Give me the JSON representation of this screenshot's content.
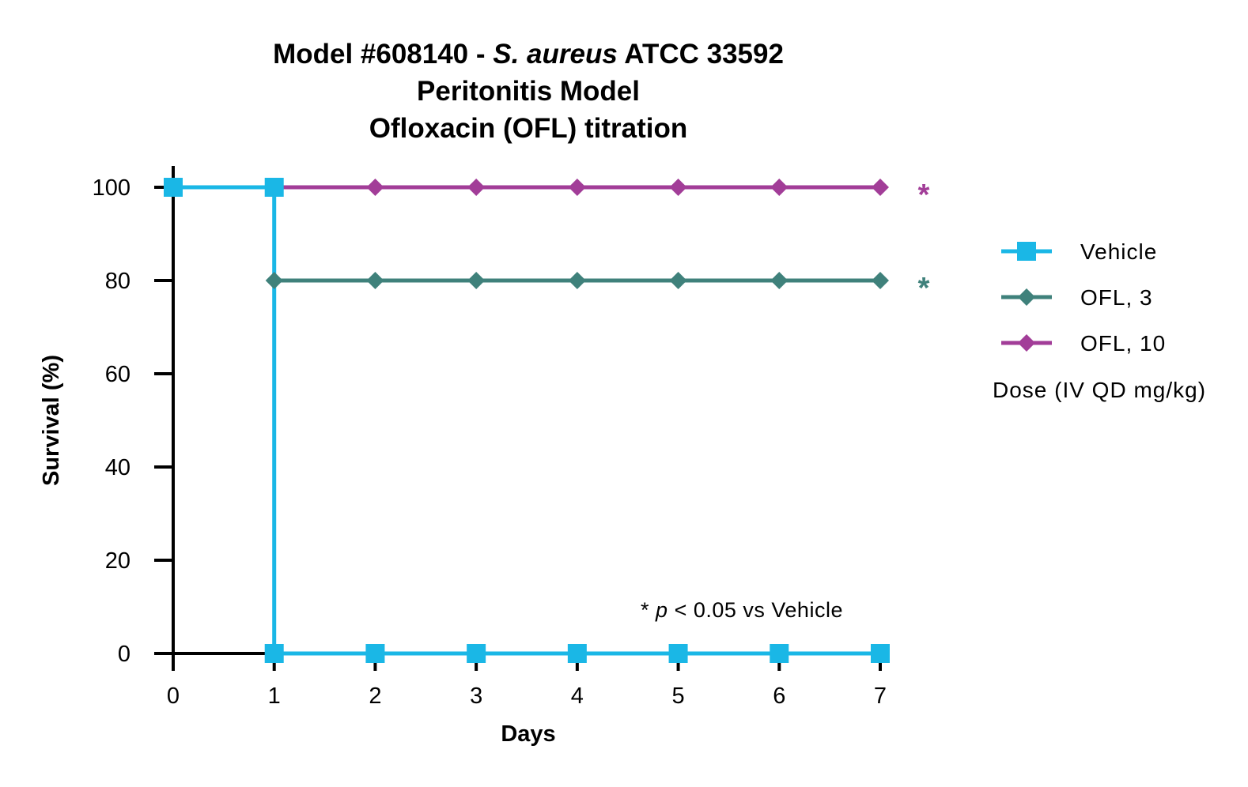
{
  "chart_data": {
    "type": "line",
    "title": {
      "line1_prefix": "Model #608140 - ",
      "line1_italic": "S. aureus",
      "line1_suffix": " ATCC 33592",
      "line2": "Peritonitis Model",
      "line3": "Ofloxacin (OFL) titration"
    },
    "xlabel": "Days",
    "ylabel": "Survival (%)",
    "xlim": [
      0,
      7
    ],
    "ylim": [
      0,
      100
    ],
    "xticks": [
      "0",
      "1",
      "2",
      "3",
      "4",
      "5",
      "6",
      "7"
    ],
    "yticks": [
      "0",
      "20",
      "40",
      "60",
      "80",
      "100"
    ],
    "step": true,
    "grid": false,
    "legend_position": "right",
    "legend_title": "Dose (IV QD mg/kg)",
    "series": [
      {
        "name": "Vehicle",
        "color": "#1ab7e6",
        "marker": "square",
        "x": [
          0,
          1,
          1,
          2,
          3,
          4,
          5,
          6,
          7
        ],
        "y": [
          100,
          100,
          0,
          0,
          0,
          0,
          0,
          0,
          0
        ],
        "significance": ""
      },
      {
        "name": "OFL, 3",
        "color": "#3f817b",
        "marker": "diamond",
        "x": [
          1,
          2,
          3,
          4,
          5,
          6,
          7
        ],
        "y": [
          80,
          80,
          80,
          80,
          80,
          80,
          80
        ],
        "significance": "*"
      },
      {
        "name": "OFL, 10",
        "color": "#a23d98",
        "marker": "diamond",
        "x": [
          1,
          2,
          3,
          4,
          5,
          6,
          7
        ],
        "y": [
          100,
          100,
          100,
          100,
          100,
          100,
          100
        ],
        "significance": "*"
      }
    ],
    "annotation": {
      "prefix": "* ",
      "italic": "p",
      "suffix": " < 0.05 vs Vehicle"
    }
  }
}
